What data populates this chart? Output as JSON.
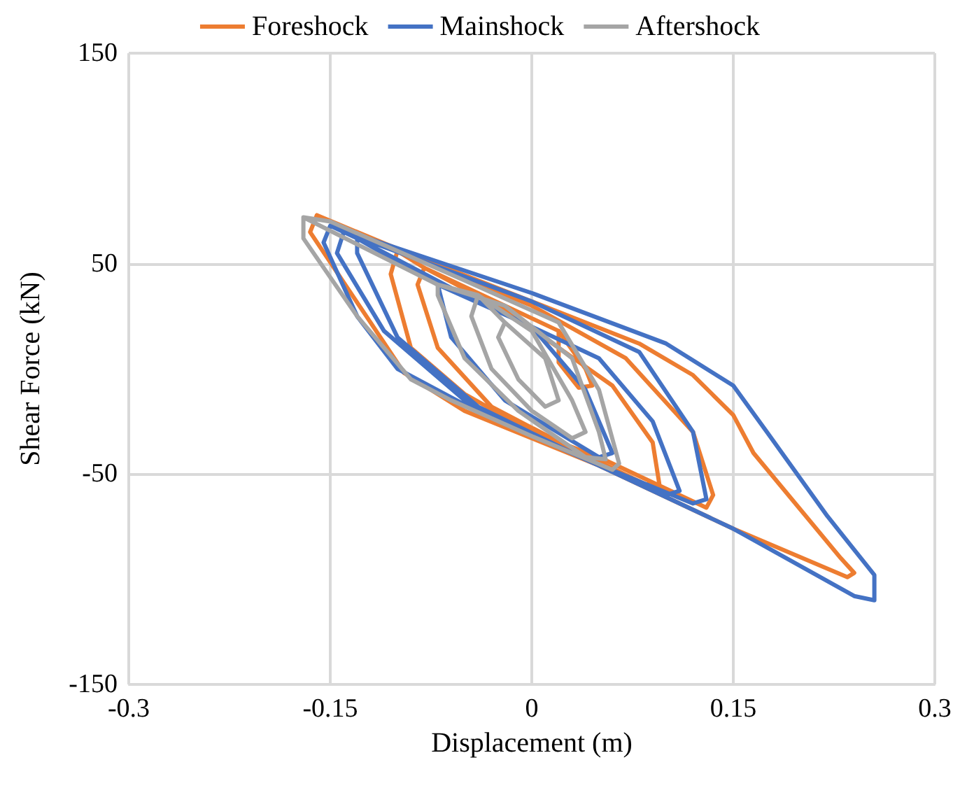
{
  "chart_data": {
    "type": "line",
    "xlabel": "Displacement (m)",
    "ylabel": "Shear Force (kN)",
    "xlim": [
      -0.3,
      0.3
    ],
    "xticks": [
      -0.3,
      -0.15,
      0,
      0.15,
      0.3
    ],
    "ylim": [
      -150,
      150
    ],
    "yticks": [
      -150,
      -50,
      50,
      150
    ],
    "grid": true,
    "legend": "top",
    "marker": "none",
    "line_style": "solid",
    "series": [
      {
        "name": "Foreshock",
        "color": "#ed7d31",
        "x": [
          0.02,
          0.04,
          0.045,
          0.035,
          0.02,
          0.02,
          -0.08,
          -0.02,
          0.06,
          0.09,
          0.095,
          0.085,
          0.03,
          -0.03,
          -0.07,
          -0.085,
          -0.08,
          -0.1,
          0,
          0.07,
          0.12,
          0.135,
          0.13,
          0.05,
          0,
          -0.05,
          -0.09,
          -0.105,
          -0.1,
          -0.16,
          -0.1,
          0,
          0.08,
          0.12,
          0.15,
          0.165,
          0.23,
          0.24,
          0.235,
          0.15,
          0.05,
          0,
          -0.05,
          -0.095,
          -0.12,
          -0.165,
          -0.16
        ],
        "values": [
          18,
          0,
          -8,
          -9,
          3,
          18,
          48,
          28,
          -8,
          -35,
          -55,
          -55,
          -38,
          -18,
          10,
          40,
          48,
          56,
          30,
          5,
          -30,
          -60,
          -66,
          -42,
          -30,
          -12,
          10,
          45,
          56,
          73,
          57,
          32,
          12,
          -3,
          -22,
          -40,
          -90,
          -97,
          -99,
          -76,
          -46,
          -33,
          -20,
          -2,
          22,
          65,
          73
        ]
      },
      {
        "name": "Mainshock",
        "color": "#4472c4",
        "x": [
          -0.07,
          0,
          0.04,
          0.06,
          0.05,
          -0.02,
          -0.06,
          -0.07,
          -0.13,
          -0.05,
          0.05,
          0.09,
          0.11,
          0.1,
          0.03,
          -0.04,
          -0.1,
          -0.13,
          -0.13,
          -0.14,
          0,
          0.08,
          0.12,
          0.13,
          0.12,
          0.04,
          -0.05,
          -0.11,
          -0.145,
          -0.14,
          -0.15,
          0,
          0.1,
          0.15,
          0.175,
          0.22,
          0.255,
          0.255,
          0.24,
          0.15,
          0.05,
          -0.05,
          -0.1,
          -0.13,
          -0.155,
          -0.15
        ],
        "values": [
          40,
          20,
          -10,
          -40,
          -42,
          -15,
          15,
          40,
          62,
          35,
          5,
          -25,
          -58,
          -60,
          -40,
          -18,
          15,
          55,
          62,
          65,
          32,
          8,
          -30,
          -62,
          -64,
          -43,
          -15,
          18,
          55,
          65,
          68,
          36,
          12,
          -8,
          -30,
          -70,
          -98,
          -110,
          -108,
          -76,
          -46,
          -17,
          0,
          25,
          60,
          68
        ]
      },
      {
        "name": "Aftershock",
        "color": "#a5a5a5",
        "x": [
          -0.17,
          -0.15,
          -0.05,
          0.02,
          0.05,
          0.065,
          0.06,
          0,
          -0.06,
          -0.09,
          -0.13,
          -0.17,
          -0.17,
          -0.07,
          -0.02,
          0.03,
          0.05,
          0.055,
          0.04,
          -0.01,
          -0.05,
          -0.07,
          -0.07,
          -0.04,
          0,
          0.03,
          0.04,
          0.03,
          0,
          -0.03,
          -0.045,
          -0.04,
          -0.02,
          0.01,
          0.02,
          0.01,
          -0.01,
          -0.025,
          -0.02
        ],
        "values": [
          72,
          70,
          42,
          22,
          -10,
          -45,
          -48,
          -32,
          -15,
          -5,
          25,
          62,
          72,
          40,
          30,
          5,
          -30,
          -43,
          -42,
          -20,
          5,
          35,
          40,
          35,
          18,
          -15,
          -30,
          -33,
          -20,
          0,
          25,
          35,
          22,
          5,
          -15,
          -18,
          -5,
          15,
          22
        ]
      }
    ]
  }
}
